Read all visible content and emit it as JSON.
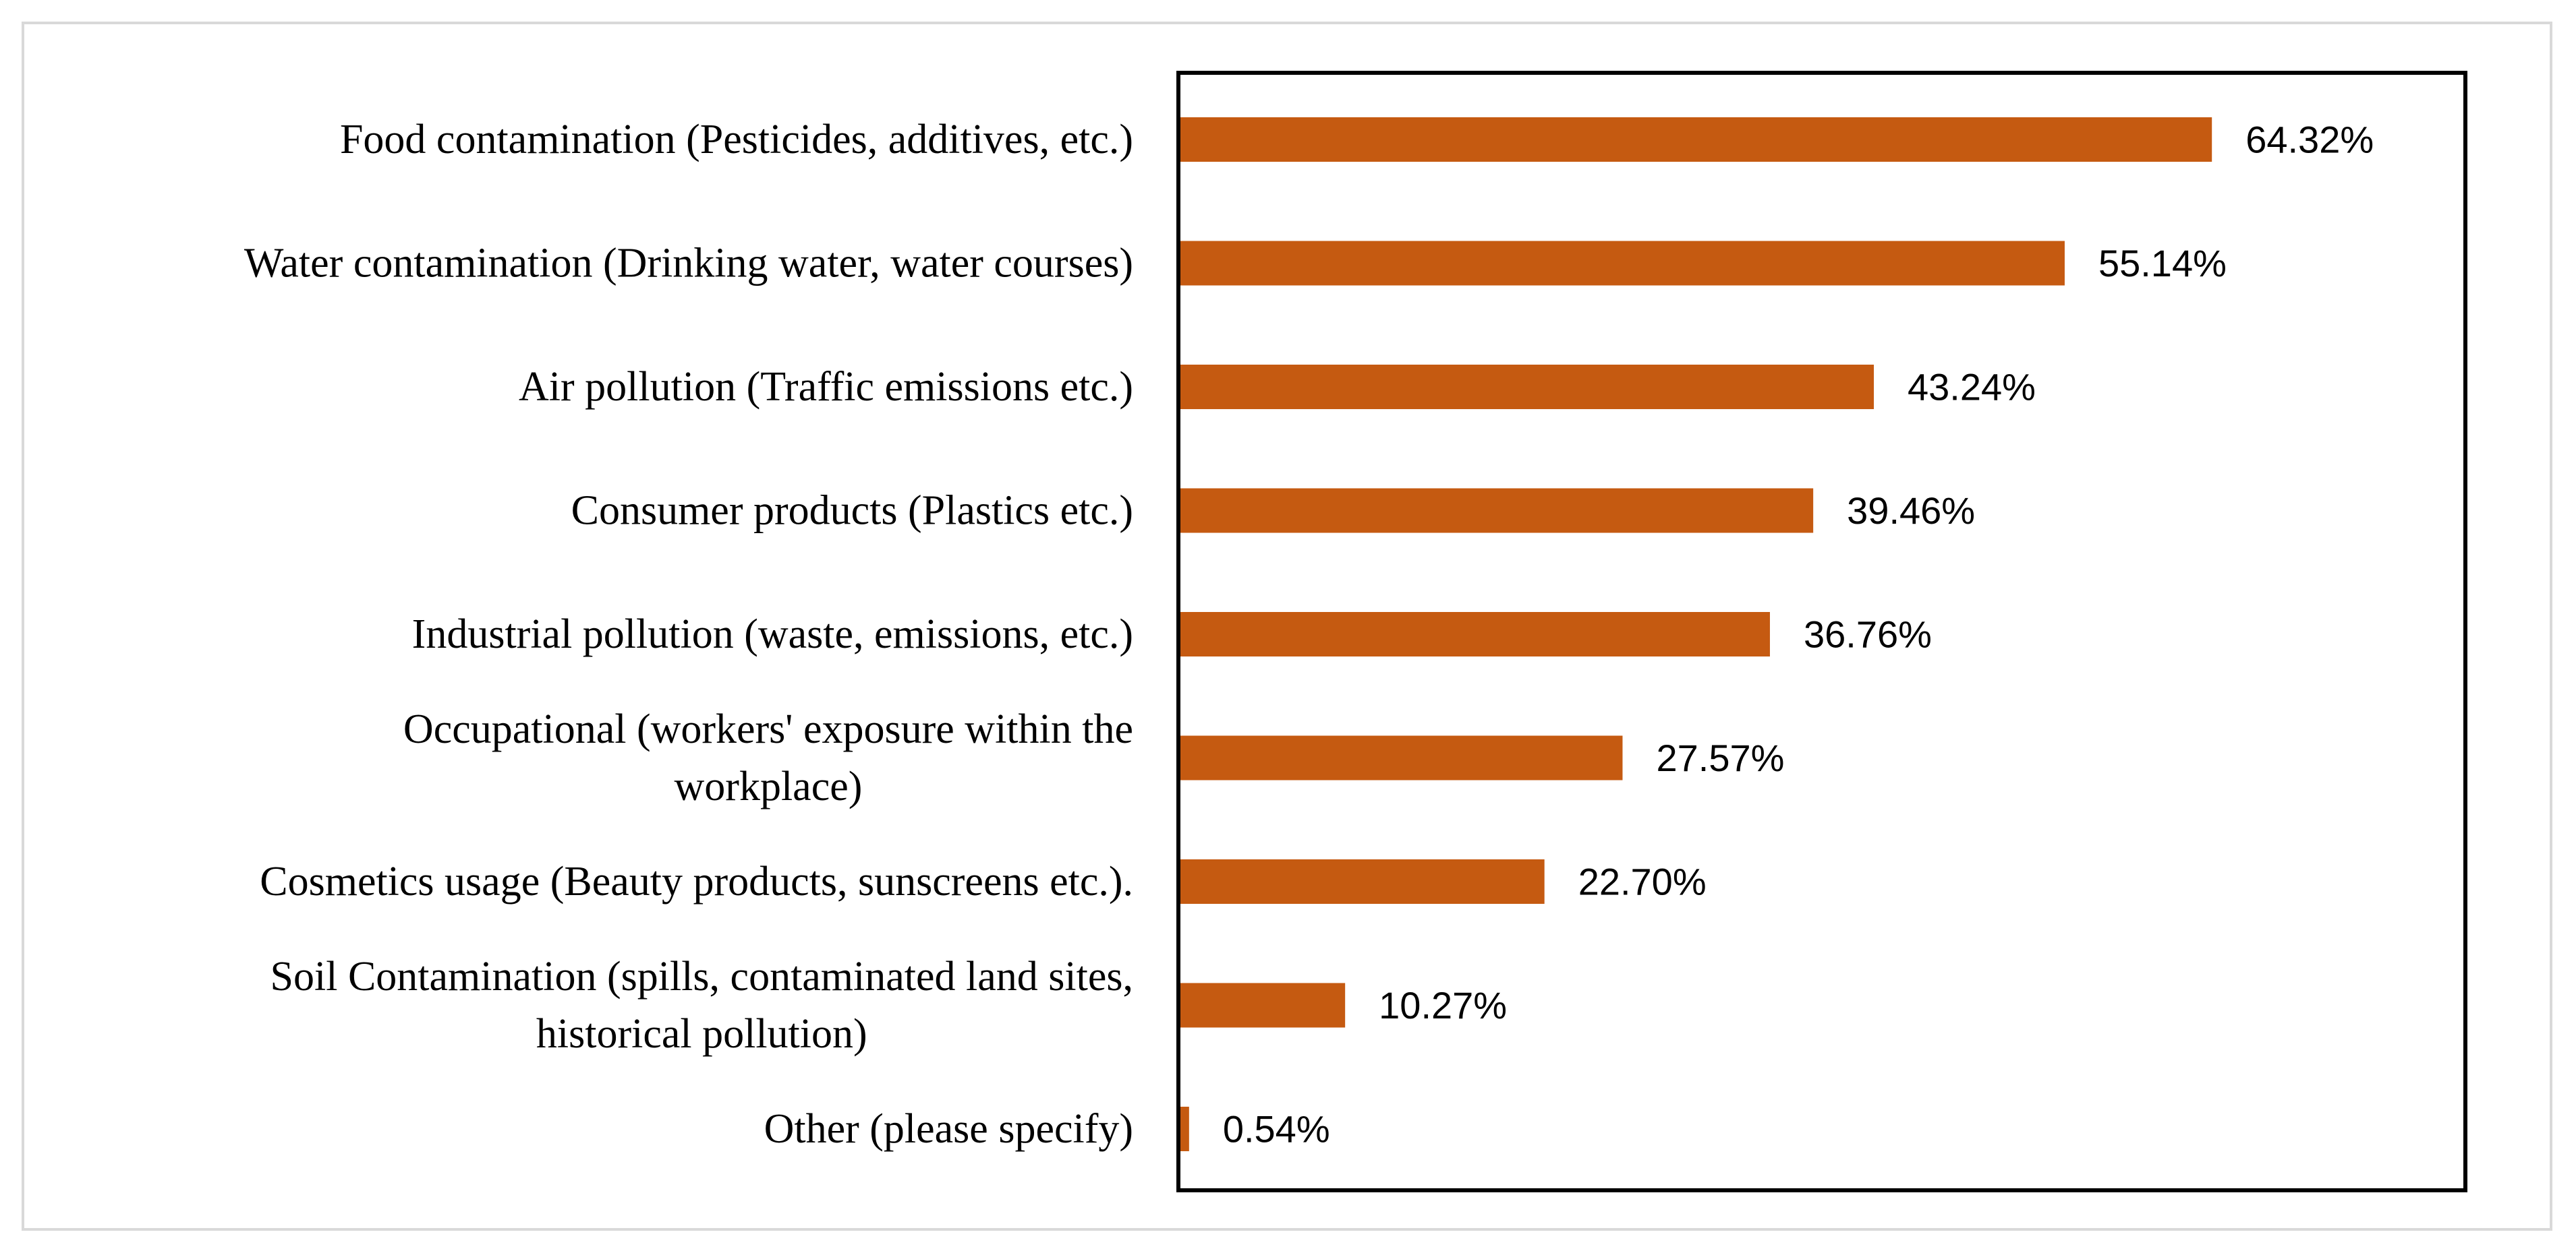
{
  "chart_data": {
    "type": "bar",
    "orientation": "horizontal",
    "categories": [
      [
        "Food contamination (Pesticides, additives, etc.)"
      ],
      [
        "Water contamination (Drinking water, water courses)"
      ],
      [
        "Air pollution (Traffic emissions etc.)"
      ],
      [
        "Consumer products (Plastics etc.)"
      ],
      [
        "Industrial pollution (waste, emissions, etc.)"
      ],
      [
        "Occupational (workers' exposure within the",
        "workplace)"
      ],
      [
        "Cosmetics usage (Beauty products, sunscreens etc.)."
      ],
      [
        "Soil Contamination (spills, contaminated land sites,",
        "historical pollution)"
      ],
      [
        "Other (please specify)"
      ]
    ],
    "values": [
      64.32,
      55.14,
      43.24,
      39.46,
      36.76,
      27.57,
      22.7,
      10.27,
      0.54
    ],
    "value_labels": [
      "64.32%",
      "55.14%",
      "43.24%",
      "39.46%",
      "36.76%",
      "27.57%",
      "22.70%",
      "10.27%",
      "0.54%"
    ],
    "xlim": [
      0,
      80
    ],
    "bar_color": "#C55A11",
    "grid": false,
    "legend": "none",
    "title": "",
    "xlabel": "",
    "ylabel": ""
  }
}
